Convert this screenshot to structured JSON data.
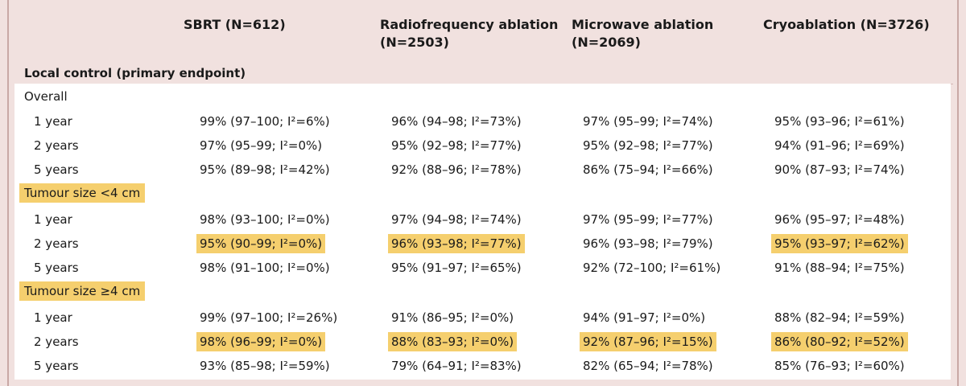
{
  "headers": [
    "SBRT (N=612)",
    "Radiofrequency ablation",
    "(N=2503)",
    "Microwave ablation",
    "(N=2069)",
    "Cryoablation (N=3726)"
  ],
  "section_title": "Local control (primary endpoint)",
  "groups": [
    {
      "title": "Overall",
      "highlight": false,
      "rows": [
        {
          "label": "1 year",
          "cells": [
            "99% (97–100; I²=6%)",
            "96% (94–98; I²=73%)",
            "97% (95–99; I²=74%)",
            "95% (93–96; I²=61%)"
          ],
          "hl": [
            false,
            false,
            false,
            false
          ]
        },
        {
          "label": "2 years",
          "cells": [
            "97% (95–99; I²=0%)",
            "95% (92–98; I²=77%)",
            "95% (92–98; I²=77%)",
            "94% (91–96; I²=69%)"
          ],
          "hl": [
            false,
            false,
            false,
            false
          ]
        },
        {
          "label": "5 years",
          "cells": [
            "95% (89–98; I²=42%)",
            "92% (88–96; I²=78%)",
            "86% (75–94; I²=66%)",
            "90% (87–93; I²=74%)"
          ],
          "hl": [
            false,
            false,
            false,
            false
          ]
        }
      ]
    },
    {
      "title": "Tumour size <4 cm",
      "highlight": true,
      "rows": [
        {
          "label": "1 year",
          "cells": [
            "98% (93–100; I²=0%)",
            "97% (94–98; I²=74%)",
            "97% (95–99; I²=77%)",
            "96% (95–97; I²=48%)"
          ],
          "hl": [
            false,
            false,
            false,
            false
          ]
        },
        {
          "label": "2 years",
          "cells": [
            "95% (90–99; I²=0%)",
            "96% (93–98; I²=77%)",
            "96% (93–98; I²=79%)",
            "95% (93–97; I²=62%)"
          ],
          "hl": [
            true,
            true,
            false,
            true
          ]
        },
        {
          "label": "5 years",
          "cells": [
            "98% (91–100; I²=0%)",
            "95% (91–97; I²=65%)",
            "92% (72–100; I²=61%)",
            "91% (88–94; I²=75%)"
          ],
          "hl": [
            false,
            false,
            false,
            false
          ]
        }
      ]
    },
    {
      "title": "Tumour size ≥4 cm",
      "highlight": true,
      "rows": [
        {
          "label": "1 year",
          "cells": [
            "99% (97–100; I²=26%)",
            "91% (86–95; I²=0%)",
            "94% (91–97; I²=0%)",
            "88% (82–94; I²=59%)"
          ],
          "hl": [
            false,
            false,
            false,
            false
          ]
        },
        {
          "label": "2 years",
          "cells": [
            "98% (96–99; I²=0%)",
            "88% (83–93; I²=0%)",
            "92% (87–96; I²=15%)",
            "86% (80–92; I²=52%)"
          ],
          "hl": [
            true,
            true,
            true,
            true
          ]
        },
        {
          "label": "5 years",
          "cells": [
            "93% (85–98; I²=59%)",
            "79% (64–91; I²=83%)",
            "82% (65–94; I²=78%)",
            "85% (76–93; I²=60%)"
          ],
          "hl": [
            false,
            false,
            false,
            false
          ]
        }
      ]
    }
  ],
  "colors": {
    "header_bg": "#f1e1df",
    "highlight": "#f5cf6e",
    "border": "#c9a8a5"
  }
}
